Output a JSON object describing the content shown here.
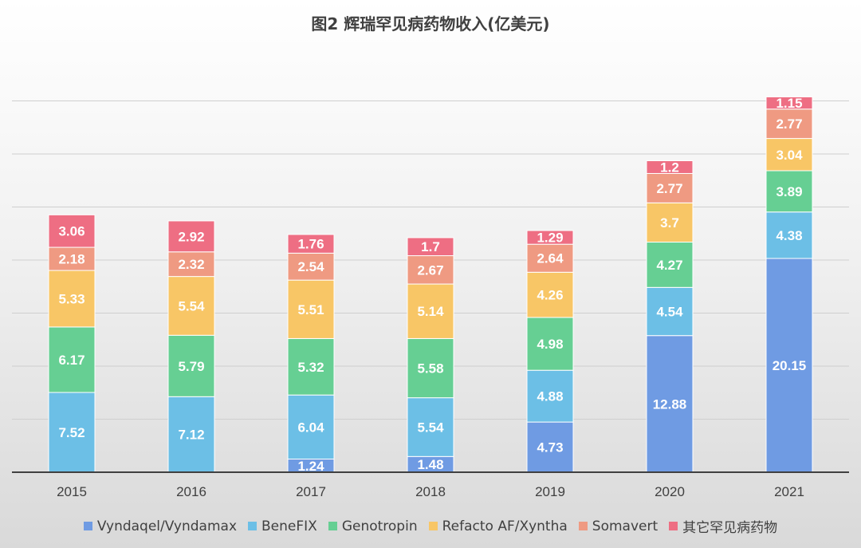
{
  "chart_data": {
    "type": "bar",
    "stacked": true,
    "title": "图2   辉瑞罕见病药物收入(亿美元)",
    "xlabel": "",
    "ylabel": "",
    "categories": [
      "2015",
      "2016",
      "2017",
      "2018",
      "2019",
      "2020",
      "2021"
    ],
    "ylim": [
      0,
      35
    ],
    "grid": true,
    "legend_position": "bottom",
    "series": [
      {
        "name": "Vyndaqel/Vyndamax",
        "color": "#6f9be3",
        "values": [
          null,
          null,
          1.24,
          1.48,
          4.73,
          12.88,
          20.15
        ]
      },
      {
        "name": "BeneFIX",
        "color": "#6cbfe6",
        "values": [
          7.52,
          7.12,
          6.04,
          5.54,
          4.88,
          4.54,
          4.38
        ]
      },
      {
        "name": "Genotropin",
        "color": "#66cf93",
        "values": [
          6.17,
          5.79,
          5.32,
          5.58,
          4.98,
          4.27,
          3.89
        ]
      },
      {
        "name": "Refacto AF/Xyntha",
        "color": "#f8c666",
        "values": [
          5.33,
          5.54,
          5.51,
          5.14,
          4.26,
          3.7,
          3.04
        ]
      },
      {
        "name": "Somavert",
        "color": "#ef9a82",
        "values": [
          2.18,
          2.32,
          2.54,
          2.67,
          2.64,
          2.77,
          2.77
        ]
      },
      {
        "name": "其它罕见病药物",
        "color": "#ee6e83",
        "values": [
          3.06,
          2.92,
          1.76,
          1.7,
          1.29,
          1.2,
          1.15
        ]
      }
    ]
  }
}
